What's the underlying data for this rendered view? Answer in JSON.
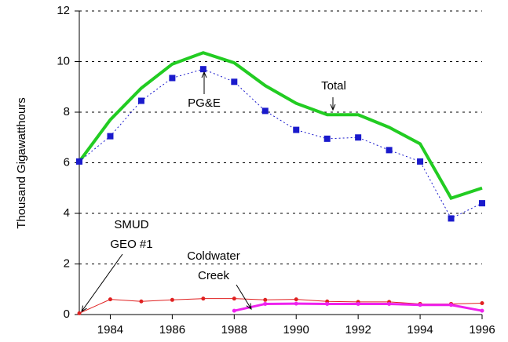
{
  "chart_data": {
    "type": "line",
    "y_label": "Thousand Gigawatthours",
    "x": [
      1983,
      1984,
      1985,
      1986,
      1987,
      1988,
      1989,
      1990,
      1991,
      1992,
      1993,
      1994,
      1995,
      1996
    ],
    "series": [
      {
        "name": "Total",
        "color": "#22cc22",
        "values": [
          6.05,
          7.7,
          8.95,
          9.9,
          10.35,
          9.95,
          9.05,
          8.35,
          7.9,
          7.9,
          7.4,
          6.75,
          4.6,
          5.0
        ]
      },
      {
        "name": "PG&E",
        "color": "#1a1acc",
        "values": [
          6.05,
          7.05,
          8.45,
          9.35,
          9.7,
          9.2,
          8.05,
          7.3,
          6.95,
          7.0,
          6.5,
          6.05,
          3.8,
          4.4
        ]
      },
      {
        "name": "SMUD GEO #1",
        "color": "#e02020",
        "values": [
          0.05,
          0.6,
          0.52,
          0.58,
          0.63,
          0.63,
          0.58,
          0.6,
          0.52,
          0.5,
          0.5,
          0.42,
          0.42,
          0.45
        ]
      },
      {
        "name": "Coldwater Creek",
        "color": "#ee22ee",
        "values": [
          null,
          null,
          null,
          null,
          null,
          0.15,
          0.42,
          0.43,
          0.42,
          0.42,
          0.42,
          0.38,
          0.38,
          0.15
        ]
      }
    ],
    "xlim": [
      1983,
      1996
    ],
    "xticks": [
      1984,
      1986,
      1988,
      1990,
      1992,
      1994,
      1996
    ],
    "ylim": [
      0,
      12
    ],
    "yticks": [
      0,
      2,
      4,
      6,
      8,
      10,
      12
    ],
    "grid": true
  }
}
